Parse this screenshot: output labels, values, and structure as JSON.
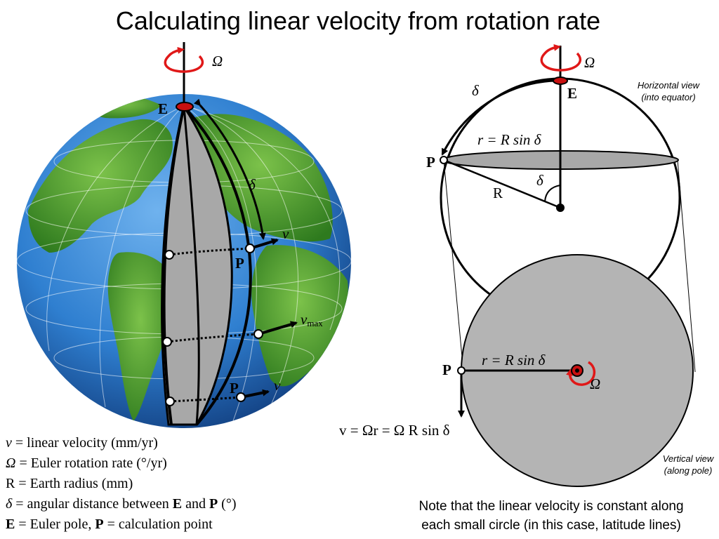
{
  "title": "Calculating linear velocity from rotation rate",
  "globe_labels": {
    "omega": "Ω",
    "pole": "E",
    "delta": "δ",
    "point_upper": "P",
    "point_lower": "P",
    "v_upper": "v",
    "v_max": "v",
    "v_max_sub": "max",
    "v_lower": "v"
  },
  "horizontal_view": {
    "caption_line1": "Horizontal view",
    "caption_line2": "(into equator)",
    "omega": "Ω",
    "pole": "E",
    "delta_arc": "δ",
    "r_formula": "r = R sin δ",
    "point": "P",
    "radius": "R",
    "delta_angle": "δ"
  },
  "vertical_view": {
    "caption_line1": "Vertical view",
    "caption_line2": "(along pole)",
    "point": "P",
    "r_formula": "r = R sin δ",
    "omega": "Ω"
  },
  "formula": "v = Ωr = Ω R sin δ",
  "legend": [
    {
      "symbol": "v",
      "text": " = linear velocity (mm/yr)"
    },
    {
      "symbol": "Ω",
      "text": " = Euler rotation rate (°/yr)"
    },
    {
      "symbol": "R",
      "text": " = Earth radius (mm)"
    },
    {
      "symbol": "δ",
      "text": " = angular distance between ",
      "b1": "E",
      "mid": " and ",
      "b2": "P",
      "end": " (°)"
    },
    {
      "symbol": "E",
      "text": " = Euler pole, ",
      "b1": "P",
      "end": " = calculation point"
    }
  ],
  "note_line1": "Note that the linear velocity is constant along",
  "note_line2": "each small circle (in this case, latitude lines)",
  "colors": {
    "ocean": "#2f7fd0",
    "land": "#3f9a2e",
    "sector": "#a8a8a8",
    "disc": "#b4b4b4",
    "rotation_arrow": "#e01818",
    "pole_marker": "#c81010"
  }
}
